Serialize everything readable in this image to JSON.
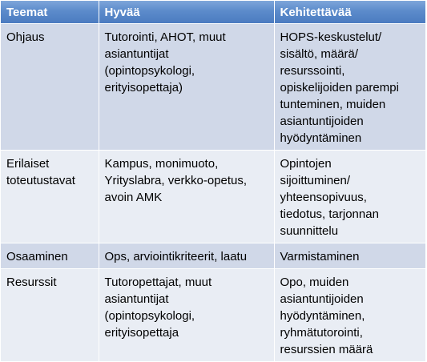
{
  "headers": [
    "Teemat",
    "Hyvää",
    "Kehitettävää"
  ],
  "rows": [
    {
      "theme": [
        "Ohjaus"
      ],
      "good": [
        "Tutorointi, AHOT, muut",
        "asiantuntijat",
        "(opintopsykologi,",
        "erityisopettaja)"
      ],
      "develop": [
        "HOPS-keskustelut/",
        "sisältö, määrä/",
        "resurssointi,",
        "opiskelijoiden parempi",
        "tunteminen, muiden",
        "asiantuntijoiden",
        "hyödyntäminen"
      ]
    },
    {
      "theme": [
        "Erilaiset",
        "toteutustavat"
      ],
      "good": [
        "Kampus, monimuoto,",
        "Yrityslabra, verkko-opetus,",
        "avoin AMK"
      ],
      "develop": [
        "Opintojen",
        "sijoittuminen/",
        "yhteensopivuus,",
        "tiedotus, tarjonnan",
        "suunnittelu"
      ]
    },
    {
      "theme": [
        "Osaaminen"
      ],
      "good": [
        "Ops, arviointikriteerit, laatu"
      ],
      "develop": [
        "Varmistaminen"
      ]
    },
    {
      "theme": [
        "Resurssit"
      ],
      "good": [
        "Tutoropettajat, muut",
        "asiantuntijat",
        "(opintopsykologi,",
        "erityisopettaja"
      ],
      "develop": [
        "Opo, muiden",
        "asiantuntijoiden",
        "hyödyntäminen,",
        "ryhmätutorointi,",
        "resurssien määrä"
      ]
    }
  ]
}
